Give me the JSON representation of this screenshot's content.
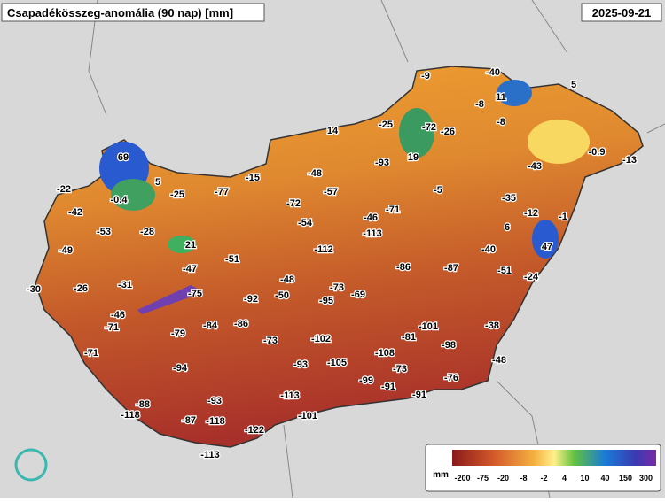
{
  "header": {
    "title": "Csapadékösszeg-anomália (90 nap) [mm]",
    "date": "2025-09-21"
  },
  "stations": [
    -9,
    -40,
    5,
    11,
    -8,
    -8,
    -25,
    -72,
    -26,
    14,
    19,
    -93,
    -43,
    -0.9,
    -13,
    69,
    -48,
    -15,
    -22,
    5,
    -0.4,
    -25,
    -77,
    -57,
    -5,
    -35,
    -72,
    -42,
    -12,
    -1,
    -46,
    -71,
    -54,
    -53,
    -28,
    6,
    -113,
    47,
    21,
    -49,
    -40,
    -112,
    -51,
    -86,
    -87,
    -47,
    -51,
    -24,
    -48,
    -30,
    -26,
    -31,
    -73,
    -69,
    -75,
    -92,
    -50,
    -95,
    -46,
    -71,
    -86,
    -84,
    -79,
    -101,
    -38,
    -81,
    -73,
    -102,
    -98,
    -71,
    -108,
    -105,
    -93,
    -94,
    -48,
    -73,
    -76,
    -99,
    -91,
    -113,
    -91,
    -93,
    -88,
    -118,
    -101,
    -87,
    -118,
    -122,
    -113
  ],
  "legend": {
    "unit": "mm",
    "labels": [
      "-200",
      "-75",
      "-20",
      "-8",
      "-2",
      "4",
      "10",
      "40",
      "150",
      "300"
    ]
  }
}
